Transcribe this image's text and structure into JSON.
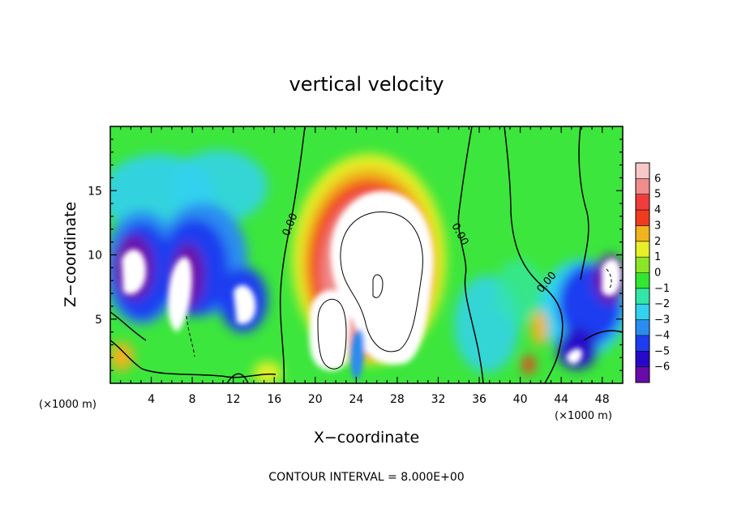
{
  "chart_data": {
    "type": "heatmap",
    "title": "vertical velocity",
    "xlabel": "X−coordinate",
    "ylabel": "Z−coordinate",
    "x_units_left": "(×1000 m)",
    "x_units_right": "(×1000 m)",
    "xlim": [
      0,
      50
    ],
    "ylim": [
      0,
      20
    ],
    "x_ticks": [
      4,
      8,
      12,
      16,
      20,
      24,
      28,
      32,
      36,
      40,
      44,
      48
    ],
    "y_ticks": [
      5,
      10,
      15
    ],
    "x_tick_labels": [
      "4",
      "8",
      "12",
      "16",
      "20",
      "24",
      "28",
      "32",
      "36",
      "40",
      "44",
      "48"
    ],
    "y_tick_labels": [
      "5",
      "10",
      "15"
    ],
    "footer": "CONTOUR INTERVAL = 8.000E+00",
    "contour_labels": [
      "0.00",
      "0.00",
      "0.00"
    ],
    "colorbar": {
      "min": -6,
      "max": 6,
      "labels": [
        "6",
        "5",
        "4",
        "3",
        "2",
        "1",
        "0",
        "−1",
        "−2",
        "−3",
        "−4",
        "−5",
        "−6"
      ],
      "colors": [
        "#6a0aa8",
        "#2808c8",
        "#1e3cf0",
        "#2a8cf0",
        "#32d2f0",
        "#32e6aa",
        "#32e632",
        "#8ce628",
        "#e6f028",
        "#f0b41e",
        "#f03c1e",
        "#f03c3c",
        "#f08c8c",
        "#f7c8c8"
      ]
    },
    "features": [
      {
        "kind": "updraft_core",
        "x": 26.5,
        "z": 10,
        "value": "> 6"
      },
      {
        "kind": "updraft_core",
        "x": 21.5,
        "z": 5.5,
        "value": "> 6"
      },
      {
        "kind": "downdraft_core",
        "x": 2,
        "z": 9,
        "value": "< -6"
      },
      {
        "kind": "downdraft_core",
        "x": 7.5,
        "z": 7,
        "value": "< -6"
      },
      {
        "kind": "downdraft_core",
        "x": 48.5,
        "z": 8,
        "value": "< -6"
      },
      {
        "kind": "zero_contour",
        "x": 17.5,
        "label": "0.00"
      },
      {
        "kind": "zero_contour",
        "x": 34,
        "label": "0.00"
      },
      {
        "kind": "zero_contour",
        "x": 43,
        "label": "0.00"
      }
    ]
  }
}
